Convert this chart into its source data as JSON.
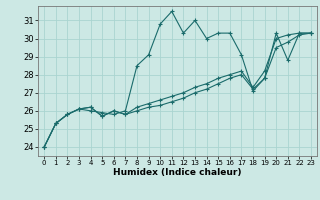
{
  "xlabel": "Humidex (Indice chaleur)",
  "bg_color": "#cce8e4",
  "line_color": "#1a6b6b",
  "grid_color": "#aad4d0",
  "xlim": [
    -0.5,
    23.5
  ],
  "ylim": [
    23.5,
    31.8
  ],
  "yticks": [
    24,
    25,
    26,
    27,
    28,
    29,
    30,
    31
  ],
  "xticks": [
    0,
    1,
    2,
    3,
    4,
    5,
    6,
    7,
    8,
    9,
    10,
    11,
    12,
    13,
    14,
    15,
    16,
    17,
    18,
    19,
    20,
    21,
    22,
    23
  ],
  "series": [
    [
      24.0,
      25.3,
      25.8,
      26.1,
      26.0,
      25.9,
      25.8,
      26.0,
      28.5,
      29.1,
      30.8,
      31.5,
      30.3,
      31.0,
      30.0,
      30.3,
      30.3,
      29.1,
      27.1,
      27.8,
      30.3,
      28.8,
      30.3,
      30.3
    ],
    [
      24.0,
      25.3,
      25.8,
      26.1,
      26.2,
      25.7,
      26.0,
      25.8,
      26.0,
      26.2,
      26.3,
      26.5,
      26.7,
      27.0,
      27.2,
      27.5,
      27.8,
      28.0,
      27.2,
      27.8,
      29.5,
      29.8,
      30.2,
      30.3
    ],
    [
      24.0,
      25.3,
      25.8,
      26.1,
      26.2,
      25.7,
      26.0,
      25.8,
      26.2,
      26.4,
      26.6,
      26.8,
      27.0,
      27.3,
      27.5,
      27.8,
      28.0,
      28.2,
      27.3,
      28.2,
      30.0,
      30.2,
      30.3,
      30.3
    ]
  ]
}
